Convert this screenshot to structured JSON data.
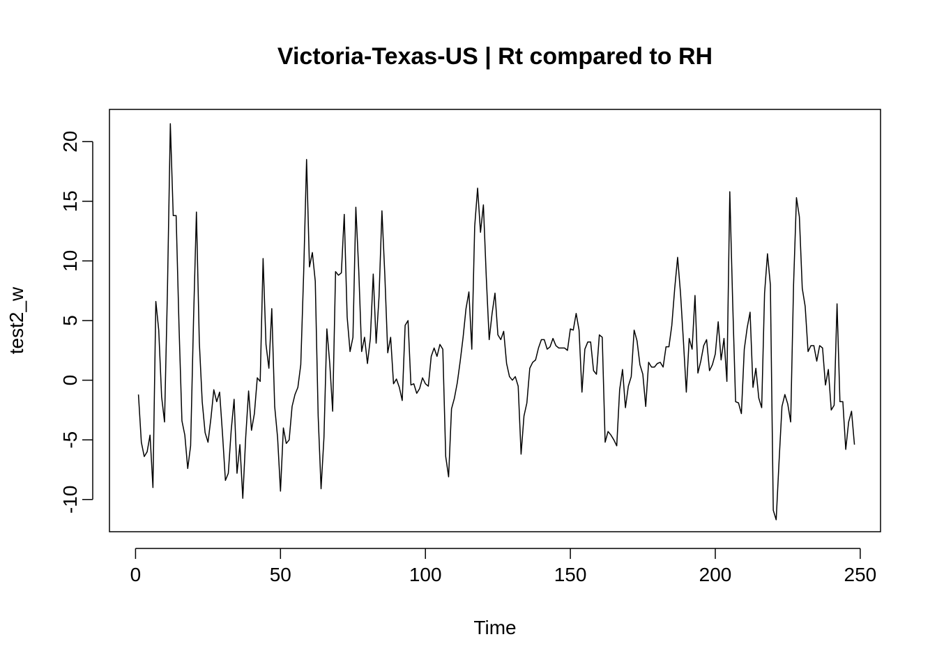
{
  "chart_data": {
    "type": "line",
    "title": "Victoria-Texas-US | Rt compared to RH",
    "xlabel": "Time",
    "ylabel": "test2_w",
    "xlim": [
      -9,
      257
    ],
    "ylim": [
      -12.7,
      22.7
    ],
    "xticks": [
      0,
      50,
      100,
      150,
      200,
      250
    ],
    "yticks": [
      -10,
      -5,
      0,
      5,
      10,
      15,
      20
    ],
    "grid": false,
    "legend": "none",
    "line_color": "#000000",
    "series": [
      {
        "x": [
          1,
          2,
          3,
          4,
          5,
          6,
          7,
          8,
          9,
          10,
          11,
          12,
          13,
          14,
          15,
          16,
          17,
          18,
          19,
          20,
          21,
          22,
          23,
          24,
          25,
          26,
          27,
          28,
          29,
          30,
          31,
          32,
          33,
          34,
          35,
          36,
          37,
          38,
          39,
          40,
          41,
          42,
          43,
          44,
          45,
          46,
          47,
          48,
          49,
          50,
          51,
          52,
          53,
          54,
          55,
          56,
          57,
          58,
          59,
          60,
          61,
          62,
          63,
          64,
          65,
          66,
          67,
          68,
          69,
          70,
          71,
          72,
          73,
          74,
          75,
          76,
          77,
          78,
          79,
          80,
          81,
          82,
          83,
          84,
          85,
          86,
          87,
          88,
          89,
          90,
          91,
          92,
          93,
          94,
          95,
          96,
          97,
          98,
          99,
          100,
          101,
          102,
          103,
          104,
          105,
          106,
          107,
          108,
          109,
          110,
          111,
          112,
          113,
          114,
          115,
          116,
          117,
          118,
          119,
          120,
          121,
          122,
          123,
          124,
          125,
          126,
          127,
          128,
          129,
          130,
          131,
          132,
          133,
          134,
          135,
          136,
          137,
          138,
          139,
          140,
          141,
          142,
          143,
          144,
          145,
          146,
          147,
          148,
          149,
          150,
          151,
          152,
          153,
          154,
          155,
          156,
          157,
          158,
          159,
          160,
          161,
          162,
          163,
          164,
          165,
          166,
          167,
          168,
          169,
          170,
          171,
          172,
          173,
          174,
          175,
          176,
          177,
          178,
          179,
          180,
          181,
          182,
          183,
          184,
          185,
          186,
          187,
          188,
          189,
          190,
          191,
          192,
          193,
          194,
          195,
          196,
          197,
          198,
          199,
          200,
          201,
          202,
          203,
          204,
          205,
          206,
          207,
          208,
          209,
          210,
          211,
          212,
          213,
          214,
          215,
          216,
          217,
          218,
          219,
          220,
          221,
          222,
          223,
          224,
          225,
          226,
          227,
          228,
          229,
          230,
          231,
          232,
          233,
          234,
          235,
          236,
          237,
          238,
          239,
          240,
          241,
          242,
          243,
          244,
          245,
          246,
          247,
          248
        ],
        "y": [
          -1.2,
          -5.2,
          -6.4,
          -6.0,
          -4.6,
          -9.0,
          6.6,
          4.2,
          -1.4,
          -3.5,
          7.5,
          21.5,
          13.8,
          13.8,
          4.5,
          -3.4,
          -4.6,
          -7.4,
          -5.5,
          5.0,
          14.1,
          3.2,
          -1.8,
          -4.4,
          -5.2,
          -3.2,
          -0.8,
          -1.8,
          -1.0,
          -4.5,
          -8.4,
          -7.8,
          -4.2,
          -1.6,
          -7.8,
          -5.4,
          -9.9,
          -4.8,
          -0.9,
          -4.2,
          -2.8,
          0.2,
          -0.1,
          10.2,
          3.0,
          1.0,
          6.0,
          -2.2,
          -4.8,
          -9.3,
          -4.0,
          -5.3,
          -5.0,
          -2.2,
          -1.2,
          -0.6,
          1.3,
          9.0,
          18.5,
          9.5,
          10.7,
          8.3,
          -3.0,
          -9.1,
          -4.8,
          4.3,
          1.4,
          -2.6,
          9.1,
          8.8,
          9.0,
          13.9,
          5.3,
          2.4,
          3.6,
          14.5,
          9.2,
          2.4,
          3.6,
          1.4,
          3.5,
          8.9,
          3.1,
          7.0,
          14.2,
          8.8,
          2.3,
          3.6,
          -0.3,
          0.1,
          -0.6,
          -1.7,
          4.6,
          5.0,
          -0.4,
          -0.3,
          -1.1,
          -0.7,
          0.2,
          -0.3,
          -0.5,
          2.0,
          2.7,
          2.0,
          3.0,
          2.6,
          -6.4,
          -8.1,
          -2.4,
          -1.5,
          -0.2,
          1.6,
          3.6,
          6.0,
          7.4,
          2.6,
          12.9,
          16.1,
          12.4,
          14.7,
          8.6,
          3.4,
          5.6,
          7.3,
          3.8,
          3.4,
          4.1,
          1.4,
          0.3,
          0.0,
          0.3,
          -0.5,
          -6.2,
          -3.0,
          -1.9,
          1.0,
          1.5,
          1.7,
          2.7,
          3.4,
          3.4,
          2.6,
          2.8,
          3.5,
          2.9,
          2.7,
          2.7,
          2.7,
          2.5,
          4.3,
          4.2,
          5.6,
          4.2,
          -1.0,
          2.6,
          3.2,
          3.2,
          0.8,
          0.5,
          3.8,
          3.6,
          -5.2,
          -4.3,
          -4.6,
          -5.0,
          -5.5,
          -0.8,
          0.9,
          -2.3,
          -0.5,
          0.3,
          4.2,
          3.3,
          1.3,
          0.5,
          -2.2,
          1.5,
          1.1,
          1.1,
          1.4,
          1.5,
          1.1,
          2.8,
          2.8,
          4.6,
          7.7,
          10.3,
          7.3,
          3.3,
          -1.0,
          3.5,
          2.6,
          7.1,
          0.6,
          1.6,
          2.9,
          3.4,
          0.8,
          1.3,
          2.2,
          4.9,
          1.7,
          3.5,
          -0.1,
          15.8,
          6.5,
          -1.8,
          -1.9,
          -2.8,
          2.6,
          4.4,
          5.7,
          -0.6,
          1.0,
          -1.5,
          -2.3,
          7.3,
          10.6,
          8.0,
          -10.9,
          -11.7,
          -6.8,
          -2.2,
          -1.2,
          -2.0,
          -3.5,
          8.0,
          15.3,
          13.7,
          7.7,
          6.2,
          2.4,
          2.9,
          2.9,
          1.6,
          2.9,
          2.7,
          -0.4,
          0.9,
          -2.5,
          -2.1,
          6.4,
          -1.8,
          -1.8,
          -5.8,
          -3.5,
          -2.6,
          -5.4
        ]
      }
    ]
  }
}
